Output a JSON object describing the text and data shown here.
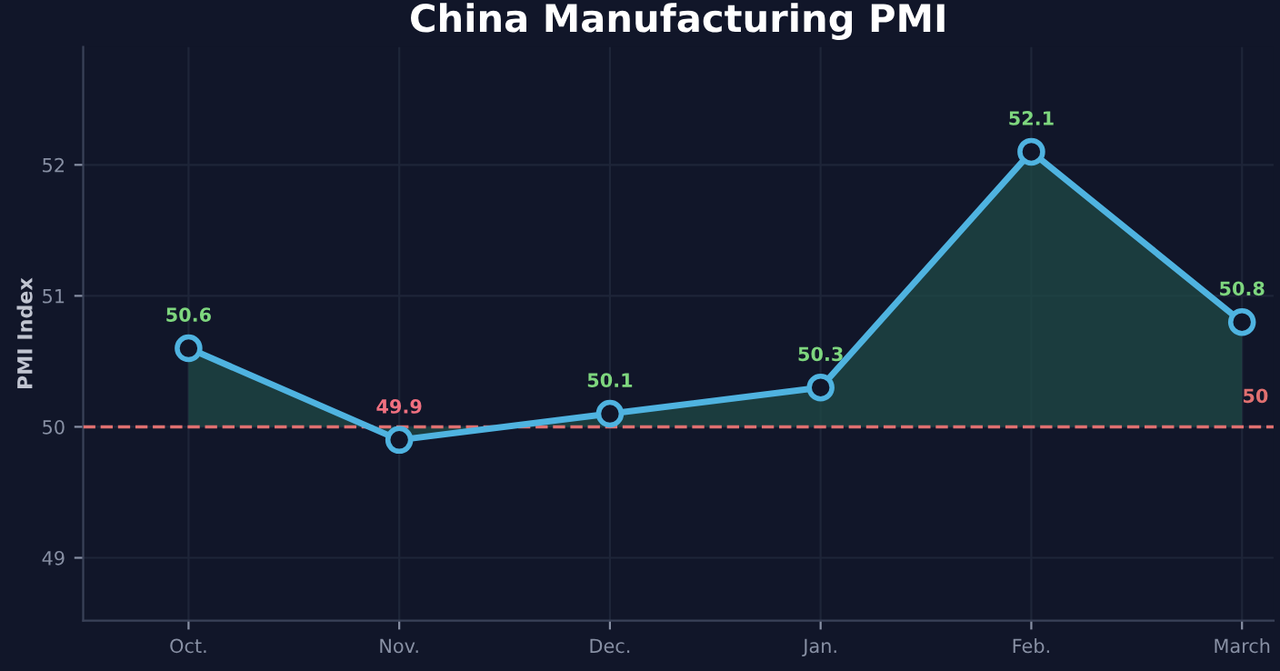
{
  "chart_data": {
    "type": "area",
    "title": "China Manufacturing PMI",
    "ylabel": "PMI Index",
    "categories": [
      "Oct.",
      "Nov.",
      "Dec.",
      "Jan.",
      "Feb.",
      "March"
    ],
    "series": [
      {
        "color": "#4fb3e0",
        "values": [
          50.6,
          49.9,
          50.1,
          50.3,
          52.1,
          50.8
        ]
      }
    ],
    "ylim": [
      48.52,
      52.9
    ],
    "yticks": [
      49,
      50,
      51,
      52
    ],
    "ref_lines": [
      {
        "axis": "y",
        "value": 50,
        "label": "50",
        "color": "#e07070",
        "line_style": "dashed"
      }
    ],
    "data_labels": true,
    "grid": true,
    "marker": "circle",
    "line_style": "solid",
    "legend": false
  }
}
